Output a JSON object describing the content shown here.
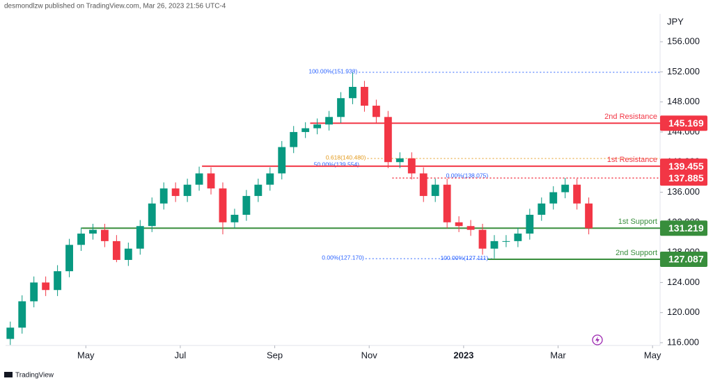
{
  "header": {
    "attribution": "desmondlzw published on TradingView.com, Mar 26, 2023 21:56 UTC-4"
  },
  "footer": {
    "brand": "TradingView"
  },
  "chart_data": {
    "type": "candlestick",
    "y_axis_label": "JPY",
    "up_color": "#089981",
    "down_color": "#f23645",
    "xlim": [
      2.3,
      16.16
    ],
    "ylim": [
      115.63,
      159.7
    ],
    "xticks": [
      {
        "value": 4,
        "label": "May"
      },
      {
        "value": 6,
        "label": "Jul"
      },
      {
        "value": 8,
        "label": "Sep"
      },
      {
        "value": 10,
        "label": "Nov"
      },
      {
        "value": 12,
        "label": "2023"
      },
      {
        "value": 14,
        "label": "Mar"
      },
      {
        "value": 16,
        "label": "May"
      }
    ],
    "yticks": [
      {
        "value": 116,
        "label": "116.000"
      },
      {
        "value": 120,
        "label": "120.000"
      },
      {
        "value": 124,
        "label": "124.000"
      },
      {
        "value": 128,
        "label": "128.000"
      },
      {
        "value": 132,
        "label": "132.000"
      },
      {
        "value": 136,
        "label": "136.000"
      },
      {
        "value": 140,
        "label": "140.000"
      },
      {
        "value": 144,
        "label": "144.000"
      },
      {
        "value": 148,
        "label": "148.000"
      },
      {
        "value": 152,
        "label": "152.000"
      },
      {
        "value": 156,
        "label": "156.000"
      }
    ],
    "x": [
      2.4,
      2.65,
      2.9,
      3.15,
      3.4,
      3.65,
      3.9,
      4.15,
      4.4,
      4.65,
      4.9,
      5.15,
      5.4,
      5.65,
      5.9,
      6.15,
      6.4,
      6.65,
      6.9,
      7.15,
      7.4,
      7.65,
      7.9,
      8.15,
      8.4,
      8.65,
      8.9,
      9.15,
      9.4,
      9.65,
      9.9,
      10.15,
      10.4,
      10.65,
      10.9,
      11.15,
      11.4,
      11.65,
      11.9,
      12.15,
      12.4,
      12.65,
      12.9,
      13.15,
      13.4,
      13.65,
      13.9,
      14.15,
      14.4,
      14.65
    ],
    "open": [
      116.5,
      118,
      121.5,
      124,
      123,
      125.5,
      129,
      130.5,
      131,
      129.5,
      127,
      128.5,
      131.5,
      134.5,
      136.5,
      135.5,
      137,
      138.5,
      136.5,
      132,
      133,
      135.5,
      137,
      138.5,
      142,
      144,
      144.5,
      145,
      146,
      148.5,
      150,
      147.5,
      146,
      140,
      140.5,
      138.5,
      135.5,
      137,
      132,
      131.5,
      131,
      128.5,
      129.5,
      129.5,
      130.5,
      133,
      134.5,
      136,
      137,
      134.5
    ],
    "high": [
      118.8,
      122.3,
      124.8,
      124.8,
      126.3,
      129.8,
      131.3,
      131.8,
      131.8,
      130.3,
      129.3,
      132.3,
      135.3,
      137.3,
      137.3,
      137.8,
      139.4,
      139.3,
      137.3,
      133.8,
      136.3,
      137.8,
      139.3,
      142.8,
      144.8,
      145.3,
      145.8,
      146.8,
      149.3,
      151.9,
      150.8,
      148.3,
      146.8,
      141.3,
      141.3,
      139.3,
      137.8,
      137.8,
      132.8,
      132.3,
      131.8,
      130.3,
      130.3,
      131.3,
      133.8,
      135.3,
      136.8,
      137.9,
      137.8,
      135.3
    ],
    "low": [
      115.7,
      117.2,
      120.7,
      122.2,
      122.2,
      124.7,
      128.2,
      129.7,
      128.7,
      126.7,
      126.2,
      127.7,
      130.7,
      133.7,
      134.7,
      134.7,
      136.2,
      135.7,
      130.4,
      131.2,
      132.2,
      134.7,
      136.2,
      137.7,
      141.2,
      143.2,
      143.7,
      144.2,
      145.2,
      147.7,
      146.7,
      145.2,
      139.2,
      139.2,
      137.7,
      134.7,
      134.7,
      131.2,
      130.7,
      130.2,
      127.7,
      127.2,
      128.7,
      128.7,
      129.7,
      132.2,
      133.7,
      135.2,
      133.7,
      130.4
    ],
    "close": [
      118,
      121.5,
      124,
      123,
      125.5,
      129,
      130.5,
      131,
      129.5,
      127,
      128.5,
      131.5,
      134.5,
      136.5,
      135.5,
      137,
      138.5,
      136.5,
      132,
      133,
      135.5,
      137,
      138.5,
      142,
      144,
      144.5,
      145,
      146,
      148.5,
      150,
      147.5,
      146,
      140,
      140.5,
      138.5,
      135.5,
      137,
      132,
      131.5,
      131,
      128.5,
      129.5,
      129.5,
      130.5,
      133,
      134.5,
      136,
      137,
      134.5,
      131.2
    ],
    "levels": [
      {
        "value": 145.169,
        "label": "2nd Resistance",
        "color": "#f23645",
        "from": 8.75,
        "style": "solid"
      },
      {
        "value": 139.455,
        "label": "1st Resistance",
        "color": "#f23645",
        "from": 6.46,
        "style": "solid"
      },
      {
        "value": 137.885,
        "color": "#f23645",
        "from": 10.49,
        "style": "dotted"
      },
      {
        "value": 131.219,
        "label": "1st Support",
        "color": "#388e3c",
        "from": 3.91,
        "style": "solid"
      },
      {
        "value": 127.087,
        "label": "2nd Support",
        "color": "#388e3c",
        "from": 12.51,
        "style": "solid"
      }
    ],
    "fib_labels": [
      {
        "label": "100.00%(151.938)",
        "value": 151.938,
        "x": 9.78,
        "color": "#2962ff",
        "line_end": 16.16
      },
      {
        "label": "0.618(140.480)",
        "value": 140.48,
        "x": 9.96,
        "color": "#e39a1c",
        "line_end": 16.16
      },
      {
        "label": "50.00%(139.554)",
        "value": 139.554,
        "x": 9.82,
        "color": "#2962ff"
      },
      {
        "label": "0.00%(138.075)",
        "value": 138.075,
        "x": 12.55,
        "color": "#2962ff"
      },
      {
        "label": "0.00%(127.170)",
        "value": 127.17,
        "x": 9.92,
        "color": "#2962ff",
        "line_end": 12.65
      },
      {
        "label": "100.00%(127.111)",
        "value": 127.111,
        "x": 12.55,
        "color": "#2962ff"
      }
    ]
  }
}
